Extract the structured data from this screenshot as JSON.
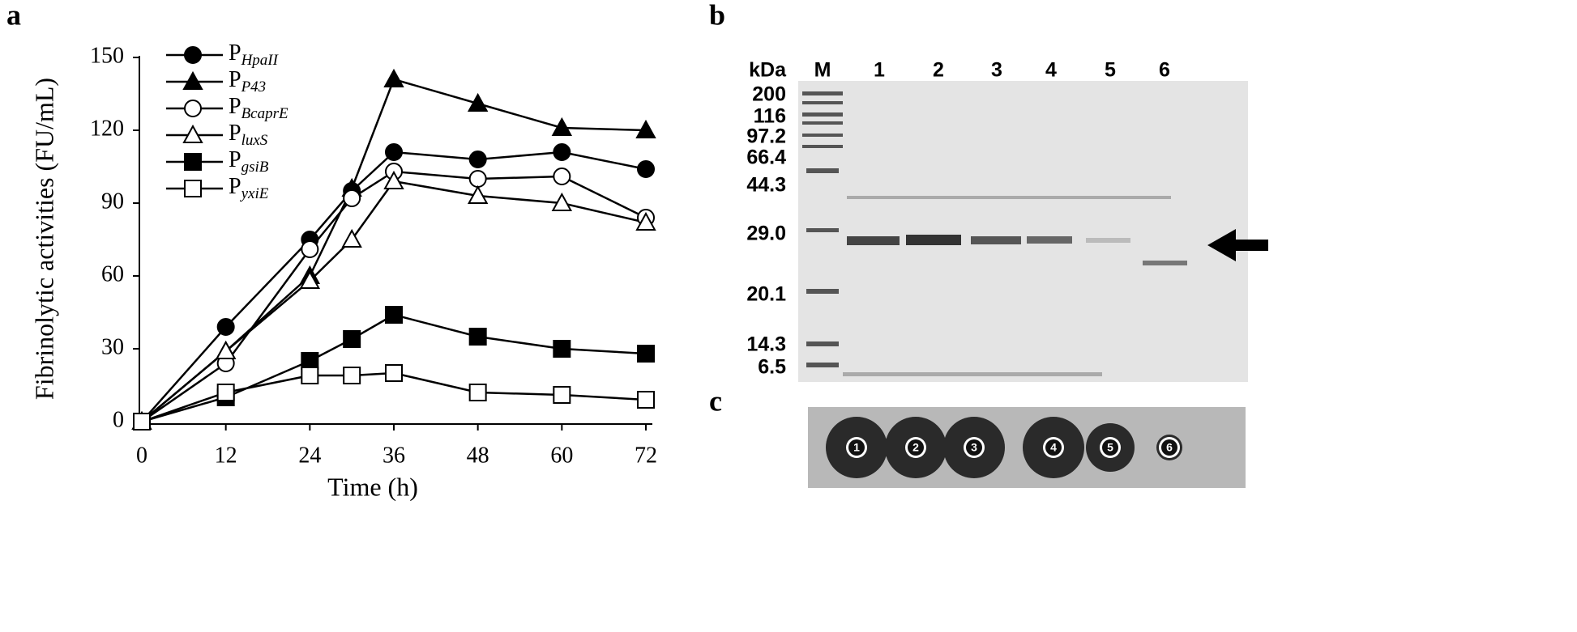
{
  "chart_data": {
    "type": "line",
    "y_label": "Fibrinolytic activities (FU/mL)",
    "x_label": "Time (h)",
    "x": [
      0,
      12,
      24,
      30,
      36,
      48,
      60,
      72
    ],
    "xlim": [
      0,
      72
    ],
    "xticks": [
      0,
      12,
      24,
      36,
      48,
      60,
      72
    ],
    "ylim": [
      0,
      150
    ],
    "yticks": [
      0,
      30,
      60,
      90,
      120,
      150
    ],
    "series": [
      {
        "name": "P",
        "subscript": "HpaII",
        "marker": "circle",
        "filled": true,
        "color": "#000000",
        "values": [
          0,
          39,
          75,
          95,
          111,
          108,
          111,
          104
        ]
      },
      {
        "name": "P",
        "subscript": "P43",
        "marker": "triangle",
        "filled": true,
        "color": "#000000",
        "values": [
          0,
          29,
          60,
          96,
          141,
          131,
          121,
          120
        ]
      },
      {
        "name": "P",
        "subscript": "BcaprE",
        "marker": "circle",
        "filled": false,
        "color": "#000000",
        "values": [
          0,
          24,
          71,
          92,
          103,
          100,
          101,
          84
        ]
      },
      {
        "name": "P",
        "subscript": "luxS",
        "marker": "triangle",
        "filled": false,
        "color": "#000000",
        "values": [
          0,
          29,
          58,
          75,
          99,
          93,
          90,
          82
        ]
      },
      {
        "name": "P",
        "subscript": "gsiB",
        "marker": "square",
        "filled": true,
        "color": "#000000",
        "values": [
          0,
          10,
          25,
          34,
          44,
          35,
          30,
          28
        ]
      },
      {
        "name": "P",
        "subscript": "yxiE",
        "marker": "square",
        "filled": false,
        "color": "#000000",
        "values": [
          0,
          12,
          19,
          19,
          20,
          12,
          11,
          9
        ]
      }
    ]
  },
  "panel_labels": [
    "a",
    "b",
    "c"
  ],
  "gel": {
    "unit": "kDa",
    "lanes": [
      "M",
      "1",
      "2",
      "3",
      "4",
      "5",
      "6"
    ],
    "markers": [
      "200",
      "116",
      "97.2",
      "66.4",
      "44.3",
      "29.0",
      "20.1",
      "14.3",
      "6.5"
    ]
  },
  "plate": {
    "spots": [
      "1",
      "2",
      "3",
      "4",
      "5",
      "6"
    ]
  }
}
